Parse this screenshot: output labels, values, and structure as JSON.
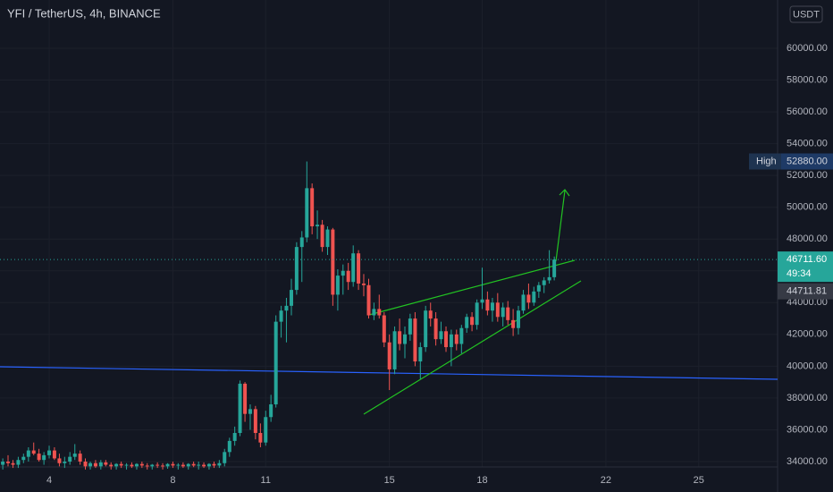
{
  "chart_data": {
    "type": "candlestick",
    "title": "YFI / TetherUS, 4h, BINANCE",
    "currency": "USDT",
    "up_color": "#26a69a",
    "down_color": "#ef5350",
    "ylim": [
      33662,
      63039
    ],
    "yticks": [
      {
        "value": 34000,
        "label": "34000.00"
      },
      {
        "value": 36000,
        "label": "36000.00"
      },
      {
        "value": 38000,
        "label": "38000.00"
      },
      {
        "value": 40000,
        "label": "40000.00"
      },
      {
        "value": 42000,
        "label": "42000.00"
      },
      {
        "value": 44000,
        "label": "44000.00"
      },
      {
        "value": 46000,
        "label": "46000.00"
      },
      {
        "value": 48000,
        "label": "48000.00"
      },
      {
        "value": 50000,
        "label": "50000.00"
      },
      {
        "value": 52000,
        "label": "52000.00"
      },
      {
        "value": 54000,
        "label": "54000.00"
      },
      {
        "value": 56000,
        "label": "56000.00"
      },
      {
        "value": 58000,
        "label": "58000.00"
      },
      {
        "value": 60000,
        "label": "60000.00"
      }
    ],
    "xlim": [
      2.41,
      27.55
    ],
    "xticks": [
      4,
      8,
      11,
      15,
      18,
      22,
      25
    ],
    "high": {
      "label": "High",
      "value": 52880,
      "value_label": "52880.00"
    },
    "last_price": {
      "value": 46711.6,
      "label": "46711.60",
      "countdown": "49:34"
    },
    "marker_price": {
      "value": 44711.81,
      "label": "44711.81"
    },
    "candles": [
      [
        2.5,
        33800,
        34200,
        33500,
        34000
      ],
      [
        2.67,
        34000,
        34400,
        33700,
        33900
      ],
      [
        2.83,
        33900,
        34100,
        33600,
        33800
      ],
      [
        3,
        33800,
        34300,
        33600,
        34100
      ],
      [
        3.17,
        34100,
        34500,
        33900,
        34300
      ],
      [
        3.33,
        34300,
        34900,
        34000,
        34700
      ],
      [
        3.5,
        34700,
        35200,
        34400,
        34500
      ],
      [
        3.67,
        34500,
        34800,
        34000,
        34100
      ],
      [
        3.83,
        34100,
        34600,
        33800,
        34400
      ],
      [
        4,
        34400,
        35000,
        34200,
        34700
      ],
      [
        4.17,
        34700,
        34900,
        34100,
        34200
      ],
      [
        4.33,
        34200,
        34500,
        33700,
        33900
      ],
      [
        4.5,
        33900,
        34300,
        33600,
        34000
      ],
      [
        4.67,
        34000,
        34600,
        33800,
        34300
      ],
      [
        4.83,
        34300,
        35100,
        34100,
        34500
      ],
      [
        5,
        34500,
        34700,
        33800,
        34000
      ],
      [
        5.17,
        34000,
        34200,
        33500,
        33700
      ],
      [
        5.33,
        33700,
        34000,
        33500,
        33900
      ],
      [
        5.5,
        33900,
        34100,
        33600,
        33700
      ],
      [
        5.67,
        33700,
        34100,
        33500,
        33950
      ],
      [
        5.83,
        33950,
        34100,
        33700,
        33800
      ],
      [
        6,
        33800,
        33950,
        33500,
        33700
      ],
      [
        6.17,
        33700,
        33900,
        33500,
        33850
      ],
      [
        6.33,
        33850,
        34000,
        33600,
        33750
      ],
      [
        6.5,
        33750,
        33900,
        33500,
        33800
      ],
      [
        6.67,
        33800,
        33950,
        33600,
        33700
      ],
      [
        6.83,
        33700,
        33900,
        33500,
        33850
      ],
      [
        7,
        33850,
        34000,
        33600,
        33750
      ],
      [
        7.17,
        33750,
        33900,
        33500,
        33700
      ],
      [
        7.33,
        33700,
        33850,
        33500,
        33800
      ],
      [
        7.5,
        33800,
        33950,
        33600,
        33750
      ],
      [
        7.67,
        33750,
        33900,
        33500,
        33700
      ],
      [
        7.83,
        33700,
        33900,
        33550,
        33850
      ],
      [
        8,
        33850,
        34000,
        33600,
        33750
      ],
      [
        8.17,
        33750,
        33900,
        33500,
        33800
      ],
      [
        8.33,
        33800,
        33950,
        33600,
        33700
      ],
      [
        8.5,
        33700,
        33900,
        33500,
        33850
      ],
      [
        8.67,
        33850,
        34000,
        33650,
        33750
      ],
      [
        8.83,
        33750,
        34000,
        33500,
        33800
      ],
      [
        9,
        33800,
        33950,
        33600,
        33700
      ],
      [
        9.17,
        33700,
        33900,
        33500,
        33850
      ],
      [
        9.33,
        33850,
        34000,
        33600,
        33750
      ],
      [
        9.5,
        33750,
        34100,
        33600,
        33900
      ],
      [
        9.67,
        33900,
        34800,
        33700,
        34600
      ],
      [
        9.83,
        34600,
        35500,
        34300,
        35300
      ],
      [
        10,
        35300,
        36200,
        35000,
        35800
      ],
      [
        10.17,
        35800,
        39100,
        35600,
        38900
      ],
      [
        10.33,
        38900,
        39000,
        36500,
        37000
      ],
      [
        10.5,
        37000,
        37600,
        36000,
        37300
      ],
      [
        10.67,
        37300,
        37500,
        35400,
        35800
      ],
      [
        10.83,
        35800,
        36400,
        34900,
        35200
      ],
      [
        11,
        35200,
        37200,
        35000,
        36800
      ],
      [
        11.17,
        36800,
        38200,
        36500,
        37600
      ],
      [
        11.33,
        37600,
        43200,
        37400,
        42800
      ],
      [
        11.5,
        42800,
        43800,
        41800,
        43500
      ],
      [
        11.67,
        43500,
        44300,
        41500,
        43800
      ],
      [
        11.83,
        43800,
        45500,
        43200,
        44800
      ],
      [
        12,
        44800,
        47800,
        44500,
        47500
      ],
      [
        12.17,
        47500,
        48500,
        45300,
        48100
      ],
      [
        12.33,
        48100,
        52880,
        47800,
        51200
      ],
      [
        12.5,
        51200,
        51500,
        48300,
        48800
      ],
      [
        12.67,
        48800,
        49800,
        48000,
        48900
      ],
      [
        12.83,
        48900,
        49200,
        47200,
        47500
      ],
      [
        13,
        47500,
        48800,
        47000,
        48600
      ],
      [
        13.17,
        48600,
        48700,
        43800,
        44500
      ],
      [
        13.33,
        44500,
        46100,
        43500,
        45700
      ],
      [
        13.5,
        45700,
        46400,
        44500,
        46000
      ],
      [
        13.67,
        46000,
        46500,
        44800,
        45300
      ],
      [
        13.83,
        45300,
        47600,
        45000,
        47100
      ],
      [
        14,
        47100,
        47300,
        44800,
        45200
      ],
      [
        14.17,
        45200,
        45800,
        44400,
        45100
      ],
      [
        14.33,
        45100,
        45500,
        43000,
        43200
      ],
      [
        14.5,
        43200,
        44000,
        42900,
        43600
      ],
      [
        14.67,
        43600,
        44500,
        43000,
        43200
      ],
      [
        14.83,
        43200,
        43400,
        41200,
        41500
      ],
      [
        15,
        41500,
        42000,
        38500,
        39800
      ],
      [
        15.17,
        39800,
        42500,
        39500,
        42200
      ],
      [
        15.33,
        42200,
        43000,
        41000,
        41400
      ],
      [
        15.5,
        41400,
        42500,
        40500,
        42000
      ],
      [
        15.67,
        42000,
        43300,
        41600,
        43000
      ],
      [
        15.83,
        43000,
        43400,
        40000,
        40300
      ],
      [
        16,
        40300,
        41500,
        39200,
        41200
      ],
      [
        16.17,
        41200,
        43800,
        40900,
        43500
      ],
      [
        16.33,
        43500,
        44000,
        42500,
        43000
      ],
      [
        16.5,
        43000,
        43400,
        41300,
        41700
      ],
      [
        16.67,
        41700,
        42800,
        41400,
        42200
      ],
      [
        16.83,
        42200,
        42500,
        40900,
        41200
      ],
      [
        17,
        41200,
        42300,
        40000,
        42000
      ],
      [
        17.17,
        42000,
        42300,
        41000,
        41400
      ],
      [
        17.33,
        41400,
        42600,
        40800,
        42400
      ],
      [
        17.5,
        42400,
        43300,
        42100,
        43100
      ],
      [
        17.67,
        43100,
        43400,
        42200,
        42600
      ],
      [
        17.83,
        42600,
        44200,
        42300,
        44000
      ],
      [
        18,
        44000,
        46200,
        43600,
        44200
      ],
      [
        18.17,
        44200,
        44700,
        43200,
        43500
      ],
      [
        18.33,
        43500,
        44300,
        42800,
        44000
      ],
      [
        18.5,
        44000,
        44600,
        42800,
        43100
      ],
      [
        18.67,
        43100,
        44000,
        42500,
        43700
      ],
      [
        18.83,
        43700,
        44100,
        42600,
        42900
      ],
      [
        19,
        42900,
        43600,
        41900,
        42400
      ],
      [
        19.17,
        42400,
        43800,
        42000,
        43500
      ],
      [
        19.33,
        43500,
        44800,
        43300,
        44500
      ],
      [
        19.5,
        44500,
        45200,
        43600,
        44000
      ],
      [
        19.67,
        44000,
        45000,
        43800,
        44700
      ],
      [
        19.83,
        44700,
        45300,
        44300,
        45100
      ],
      [
        20,
        45100,
        45600,
        44600,
        45400
      ],
      [
        20.17,
        45400,
        47300,
        45200,
        45600
      ],
      [
        20.33,
        45600,
        46900,
        45400,
        46711.6
      ]
    ]
  }
}
